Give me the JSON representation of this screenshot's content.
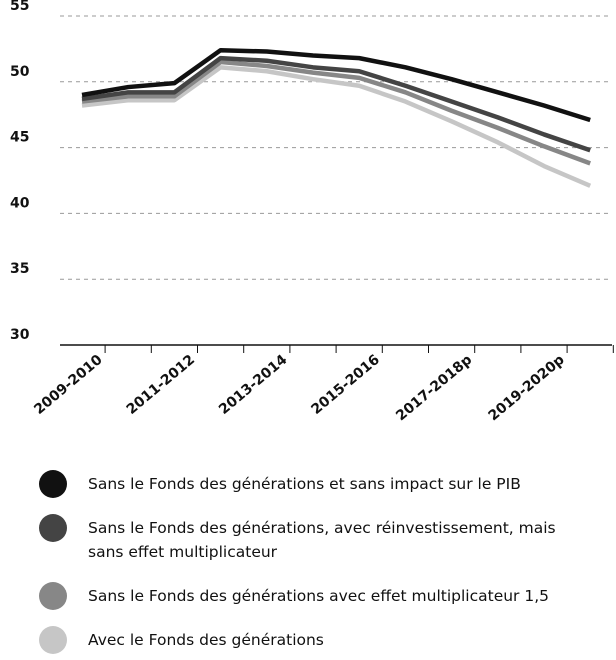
{
  "chart_data": {
    "type": "line",
    "categories": [
      "2009-2010",
      null,
      "2011-2012",
      null,
      "2013-2014",
      null,
      "2015-2016",
      null,
      "2017-2018p",
      null,
      "2019-2020p",
      null
    ],
    "series": [
      {
        "name": "Sans le Fonds des générations et sans impact sur le PIB",
        "color": "#111111",
        "values": [
          49.0,
          49.6,
          49.9,
          52.4,
          52.3,
          52.0,
          51.8,
          51.1,
          50.2,
          49.2,
          48.2,
          47.1
        ]
      },
      {
        "name": "Sans le Fonds des générations, avec réinvestissement, mais sans effet multiplicateur",
        "color": "#444444",
        "values": [
          48.7,
          49.2,
          49.2,
          51.8,
          51.6,
          51.1,
          50.8,
          49.7,
          48.5,
          47.3,
          46.0,
          44.8
        ]
      },
      {
        "name": "Sans le Fonds des générations avec effet multiplicateur 1,5",
        "color": "#878787",
        "values": [
          48.5,
          48.9,
          48.9,
          51.5,
          51.2,
          50.7,
          50.3,
          49.2,
          47.8,
          46.5,
          45.1,
          43.8
        ]
      },
      {
        "name": "Avec le Fonds des générations",
        "color": "#c6c6c6",
        "values": [
          48.2,
          48.6,
          48.6,
          51.1,
          50.8,
          50.2,
          49.7,
          48.5,
          47.0,
          45.4,
          43.6,
          42.1
        ]
      }
    ],
    "ylim": [
      30,
      55
    ],
    "yticks": [
      30,
      35,
      40,
      45,
      50,
      55
    ],
    "grid": true
  }
}
